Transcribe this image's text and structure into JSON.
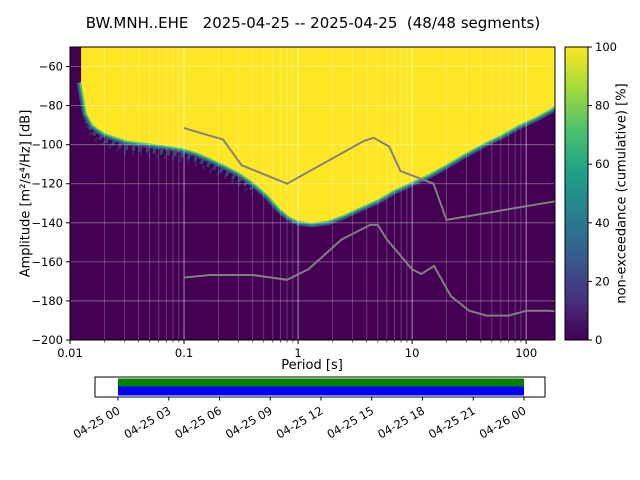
{
  "title": "BW.MNH..EHE   2025-04-25 -- 2025-04-25  (48/48 segments)",
  "chart_data": {
    "type": "heatmap",
    "subtype": "ppsd-cumulative-spectral-plot",
    "title": "BW.MNH..EHE   2025-04-25 -- 2025-04-25  (48/48 segments)",
    "xlabel": "Period [s]",
    "ylabel": "Amplitude [m²/s⁴/Hz] [dB]",
    "colorbar_label": "non-exceedance (cumulative) [%]",
    "x_scale": "log",
    "xlim": [
      0.01,
      179
    ],
    "ylim": [
      -200,
      -50
    ],
    "grid": true,
    "x_tick_values": [
      0.01,
      0.1,
      1,
      10,
      100
    ],
    "x_tick_labels": [
      "0.01",
      "0.1",
      "1",
      "10",
      "100"
    ],
    "y_tick_values": [
      -200,
      -180,
      -160,
      -140,
      -120,
      -100,
      -80,
      -60
    ],
    "y_tick_labels": [
      "−200",
      "−180",
      "−160",
      "−140",
      "−120",
      "−100",
      "−80",
      "−60"
    ],
    "colorbar_tick_values": [
      0,
      20,
      40,
      60,
      80,
      100
    ],
    "colorbar_tick_labels": [
      "0",
      "20",
      "40",
      "60",
      "80",
      "100"
    ],
    "colormap": "viridis",
    "colors": {
      "background_0pct": "#440154",
      "full_100pct": "#fde725",
      "fringe_blue": "#3b528b",
      "fringe_teal": "#21918c",
      "fringe_green": "#5ec962",
      "noise_model_line": "#808080",
      "grid_line": "#ffffff",
      "axis_line": "#000000",
      "viridis_stops": [
        "#440154",
        "#46327e",
        "#365c8d",
        "#277f8e",
        "#1fa187",
        "#4ac16d",
        "#a0da39",
        "#fde725"
      ]
    },
    "no_data_max_period": 0.0125,
    "cumulative_boundary_points": [
      [
        0.0125,
        -68
      ],
      [
        0.014,
        -84
      ],
      [
        0.016,
        -90
      ],
      [
        0.02,
        -94
      ],
      [
        0.025,
        -96
      ],
      [
        0.032,
        -98
      ],
      [
        0.045,
        -99
      ],
      [
        0.06,
        -100
      ],
      [
        0.08,
        -101
      ],
      [
        0.1,
        -102
      ],
      [
        0.13,
        -104
      ],
      [
        0.17,
        -107
      ],
      [
        0.22,
        -110
      ],
      [
        0.3,
        -114
      ],
      [
        0.4,
        -119
      ],
      [
        0.55,
        -126
      ],
      [
        0.7,
        -133
      ],
      [
        0.85,
        -137
      ],
      [
        1.0,
        -139
      ],
      [
        1.3,
        -140
      ],
      [
        1.8,
        -139
      ],
      [
        2.5,
        -136
      ],
      [
        3.5,
        -132
      ],
      [
        5.0,
        -128
      ],
      [
        7.0,
        -123
      ],
      [
        10,
        -119
      ],
      [
        14,
        -115
      ],
      [
        20,
        -110
      ],
      [
        28,
        -105
      ],
      [
        40,
        -100
      ],
      [
        60,
        -95
      ],
      [
        85,
        -90
      ],
      [
        120,
        -86
      ],
      [
        160,
        -82
      ],
      [
        179,
        -80
      ]
    ],
    "noise_models": [
      {
        "name": "NHNM",
        "points": [
          [
            0.1,
            -91.5
          ],
          [
            0.22,
            -97.4
          ],
          [
            0.32,
            -110.5
          ],
          [
            0.8,
            -120.0
          ],
          [
            3.8,
            -98.0
          ],
          [
            4.6,
            -96.5
          ],
          [
            6.3,
            -101.0
          ],
          [
            7.9,
            -113.5
          ],
          [
            15.4,
            -120.0
          ],
          [
            20.0,
            -138.5
          ],
          [
            50.0,
            -134.5
          ],
          [
            100.0,
            -131.5
          ],
          [
            179.0,
            -129.0
          ]
        ]
      },
      {
        "name": "NLNM",
        "points": [
          [
            0.1,
            -168.0
          ],
          [
            0.17,
            -166.7
          ],
          [
            0.4,
            -166.7
          ],
          [
            0.8,
            -169.2
          ],
          [
            1.24,
            -163.7
          ],
          [
            2.4,
            -148.6
          ],
          [
            4.3,
            -141.1
          ],
          [
            5.0,
            -141.1
          ],
          [
            6.0,
            -148.5
          ],
          [
            10.0,
            -163.8
          ],
          [
            12.0,
            -166.2
          ],
          [
            15.6,
            -162.1
          ],
          [
            21.9,
            -177.5
          ],
          [
            31.6,
            -185.0
          ],
          [
            45.0,
            -187.5
          ],
          [
            70.0,
            -187.5
          ],
          [
            101.0,
            -185.0
          ],
          [
            154.0,
            -185.0
          ],
          [
            179.0,
            -185.3
          ]
        ]
      }
    ],
    "timeline": {
      "tick_labels": [
        "04-25 00",
        "04-25 03",
        "04-25 06",
        "04-25 09",
        "04-25 12",
        "04-25 15",
        "04-25 18",
        "04-25 21",
        "04-26 00"
      ],
      "data_color": "#008000",
      "coverage_color": "#0000ff",
      "box_fill": "#ffffff"
    }
  }
}
